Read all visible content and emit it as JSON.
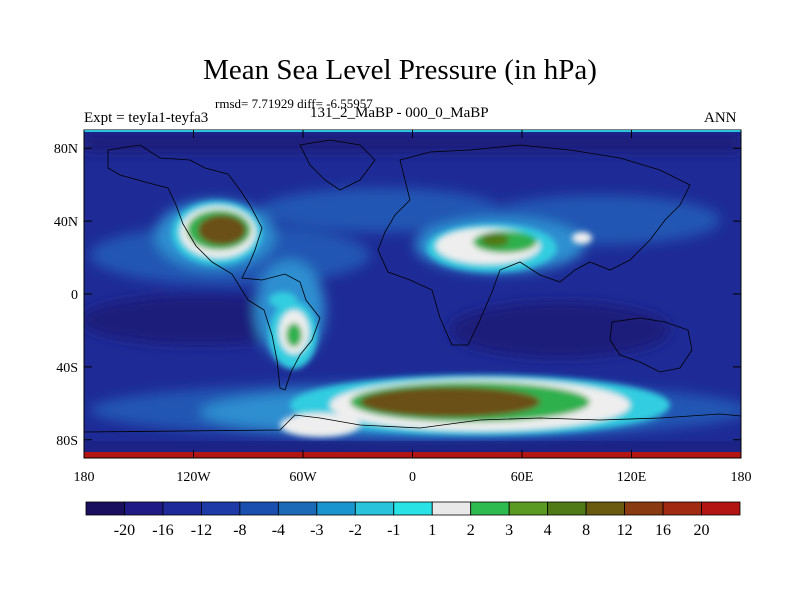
{
  "title": "Mean Sea Level Pressure (in hPa)",
  "stats": "rmsd= 7.71929 diff= -6.55957",
  "experiment": "Expt = teyIa1-teyfa3",
  "subtitle": "131_2_MaBP - 000_0_MaBP",
  "period": "ANN",
  "lat_labels": [
    "80N",
    "40N",
    "0",
    "40S",
    "80S"
  ],
  "lon_labels": [
    "180",
    "120W",
    "60W",
    "0",
    "60E",
    "120E",
    "180"
  ],
  "colorbar": {
    "labels": [
      "-20",
      "-16",
      "-12",
      "-8",
      "-4",
      "-3",
      "-2",
      "-1",
      "1",
      "2",
      "3",
      "4",
      "8",
      "12",
      "16",
      "20"
    ],
    "colors": [
      "#1a0f5e",
      "#1f1a86",
      "#1e2a9a",
      "#1d3aa6",
      "#1a4fb0",
      "#1a6ab8",
      "#1a94cf",
      "#29c3dc",
      "#28e2e6",
      "#e9e9e9",
      "#2dbb4f",
      "#5a9a22",
      "#4f7a16",
      "#6a5a10",
      "#8a3a10",
      "#a02a12",
      "#b31512"
    ]
  },
  "map_colors": {
    "ocean": "#1e2b96",
    "deep": "#1a1f7a",
    "mid": "#2457b4",
    "light": "#2f8fd0",
    "cyan": "#33cde0",
    "white": "#eeeeee",
    "green": "#2db04e",
    "olive": "#4f7a16",
    "brown": "#6a5014",
    "polar_red": "#b31512"
  }
}
